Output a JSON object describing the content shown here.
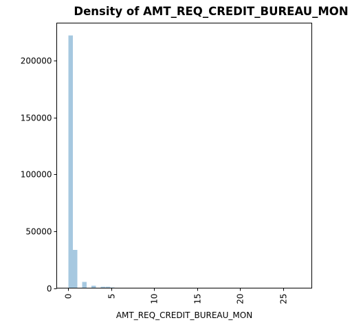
{
  "chart_data": {
    "type": "bar",
    "title": "Density of AMT_REQ_CREDIT_BUREAU_MON",
    "xlabel": "AMT_REQ_CREDIT_BUREAU_MON",
    "ylabel": "",
    "xlim": [
      -1.35,
      28.35
    ],
    "ylim": [
      0,
      233000
    ],
    "bin_width": 0.54,
    "bar_color": "#a6c8e0",
    "grid": false,
    "xticks": [
      0,
      5,
      10,
      15,
      20,
      25
    ],
    "xtick_labels": [
      "0",
      "5",
      "10",
      "15",
      "20",
      "25"
    ],
    "xtick_rotation": 90,
    "yticks": [
      0,
      50000,
      100000,
      150000,
      200000
    ],
    "ytick_labels": [
      "0",
      "50000",
      "100000",
      "150000",
      "200000"
    ],
    "bins": [
      {
        "x": 0.0,
        "y": 222000
      },
      {
        "x": 0.54,
        "y": 33600
      },
      {
        "x": 1.62,
        "y": 5400
      },
      {
        "x": 2.7,
        "y": 2000
      },
      {
        "x": 3.78,
        "y": 1200
      },
      {
        "x": 4.32,
        "y": 1100
      },
      {
        "x": 4.86,
        "y": 600
      },
      {
        "x": 5.94,
        "y": 300
      },
      {
        "x": 7.02,
        "y": 200
      },
      {
        "x": 8.1,
        "y": 150
      },
      {
        "x": 9.18,
        "y": 100
      },
      {
        "x": 10.26,
        "y": 80
      },
      {
        "x": 11.34,
        "y": 60
      },
      {
        "x": 12.42,
        "y": 50
      },
      {
        "x": 13.5,
        "y": 40
      },
      {
        "x": 14.58,
        "y": 30
      },
      {
        "x": 15.66,
        "y": 20
      },
      {
        "x": 16.74,
        "y": 15
      },
      {
        "x": 17.82,
        "y": 10
      },
      {
        "x": 18.9,
        "y": 8
      },
      {
        "x": 22.68,
        "y": 5
      },
      {
        "x": 23.76,
        "y": 4
      },
      {
        "x": 26.46,
        "y": 3
      }
    ]
  }
}
